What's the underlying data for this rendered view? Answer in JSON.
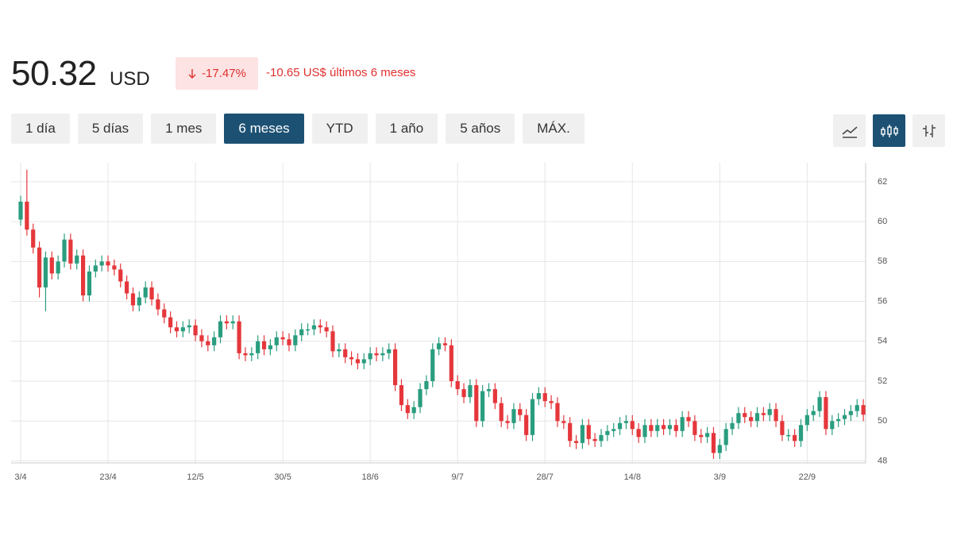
{
  "header": {
    "price": "50.32",
    "currency": "USD",
    "change_pct": "-17.47%",
    "change_abs": "-10.65 US$ últimos 6 meses"
  },
  "tabs": {
    "items": [
      "1 día",
      "5 días",
      "1 mes",
      "6 meses",
      "YTD",
      "1 año",
      "5 años",
      "MÁX."
    ],
    "active": 3
  },
  "chart_data": {
    "type": "candlestick",
    "up_color": "#2a9d7f",
    "down_color": "#e5373b",
    "grid": true,
    "ylim": [
      47.9,
      62.95
    ],
    "yticks": [
      48,
      50,
      52,
      54,
      56,
      58,
      60,
      62
    ],
    "categories": [
      "3/4",
      null,
      null,
      null,
      null,
      null,
      null,
      null,
      null,
      null,
      null,
      null,
      null,
      null,
      "23/4",
      null,
      null,
      null,
      null,
      null,
      null,
      null,
      null,
      null,
      null,
      null,
      null,
      null,
      "12/5",
      null,
      null,
      null,
      null,
      null,
      null,
      null,
      null,
      null,
      null,
      null,
      null,
      null,
      "30/5",
      null,
      null,
      null,
      null,
      null,
      null,
      null,
      null,
      null,
      null,
      null,
      null,
      null,
      "18/6",
      null,
      null,
      null,
      null,
      null,
      null,
      null,
      null,
      null,
      null,
      null,
      null,
      null,
      "9/7",
      null,
      null,
      null,
      null,
      null,
      null,
      null,
      null,
      null,
      null,
      null,
      null,
      null,
      "28/7",
      null,
      null,
      null,
      null,
      null,
      null,
      null,
      null,
      null,
      null,
      null,
      null,
      null,
      "14/8",
      null,
      null,
      null,
      null,
      null,
      null,
      null,
      null,
      null,
      null,
      null,
      null,
      null,
      "3/9",
      null,
      null,
      null,
      null,
      null,
      null,
      null,
      null,
      null,
      null,
      null,
      null,
      null,
      "22/9",
      null,
      null,
      null,
      null,
      null,
      null,
      null,
      null,
      null
    ],
    "open": [
      60.1,
      61,
      59.6,
      58.7,
      56.7,
      58.2,
      57.4,
      58.0,
      59.1,
      57.9,
      58.3,
      56.3,
      57.5,
      57.8,
      58.0,
      57.8,
      57.6,
      57.0,
      56.4,
      55.8,
      56.2,
      56.7,
      56.1,
      55.6,
      55.2,
      54.7,
      54.5,
      54.7,
      54.8,
      54.3,
      54.0,
      53.8,
      54.2,
      55.0,
      54.9,
      55.0,
      53.4,
      53.3,
      53.4,
      54.0,
      53.6,
      53.8,
      54.2,
      54.1,
      53.8,
      54.3,
      54.6,
      54.6,
      54.8,
      54.7,
      54.5,
      53.5,
      53.6,
      53.2,
      53.1,
      52.9,
      53.1,
      53.4,
      53.3,
      53.4,
      53.6,
      51.8,
      50.8,
      50.4,
      50.7,
      51.6,
      52.0,
      53.6,
      53.9,
      53.8,
      52.0,
      51.6,
      51.2,
      51.8,
      50.0,
      51.5,
      51.6,
      50.9,
      50.0,
      49.9,
      50.6,
      50.3,
      49.3,
      51.1,
      51.4,
      51.0,
      50.9,
      50.0,
      49.9,
      49.0,
      48.9,
      49.8,
      49.1,
      49.0,
      49.3,
      49.5,
      49.6,
      49.9,
      50.0,
      49.6,
      49.2,
      49.8,
      49.5,
      49.8,
      49.6,
      49.8,
      49.5,
      50.2,
      50.0,
      49.3,
      49.2,
      49.4,
      48.4,
      48.8,
      49.6,
      49.9,
      50.4,
      50.2,
      50.0,
      50.4,
      50.3,
      50.6,
      50.0,
      49.3,
      49.3,
      49.0,
      49.8,
      50.3,
      50.5,
      51.2,
      49.6,
      50.0,
      50.1,
      50.3,
      50.5,
      50.8
    ],
    "high": [
      61.3,
      62.6,
      59.9,
      59.0,
      58.5,
      58.5,
      58.3,
      59.4,
      59.4,
      58.6,
      58.6,
      57.8,
      58.1,
      58.3,
      58.3,
      58.1,
      57.9,
      57.3,
      56.7,
      56.5,
      57.0,
      57.0,
      56.4,
      55.9,
      55.5,
      55.0,
      55.0,
      55.1,
      55.1,
      54.6,
      54.3,
      54.5,
      55.3,
      55.3,
      55.3,
      55.3,
      53.7,
      53.7,
      54.3,
      54.3,
      54.1,
      54.5,
      54.5,
      54.4,
      54.6,
      54.9,
      54.9,
      55.1,
      55.1,
      55.0,
      54.8,
      53.9,
      53.9,
      53.5,
      53.4,
      53.4,
      53.7,
      53.7,
      53.7,
      53.9,
      53.9,
      52.1,
      51.1,
      51.0,
      51.9,
      52.3,
      53.9,
      54.2,
      54.2,
      54.1,
      52.3,
      51.9,
      52.1,
      52.1,
      51.8,
      51.9,
      51.9,
      51.2,
      50.3,
      50.9,
      50.9,
      50.6,
      51.4,
      51.7,
      51.7,
      51.3,
      51.2,
      50.3,
      50.2,
      49.3,
      50.1,
      50.1,
      49.4,
      49.6,
      49.8,
      49.9,
      50.2,
      50.3,
      50.3,
      49.9,
      50.1,
      50.1,
      50.1,
      50.1,
      50.1,
      50.1,
      50.5,
      50.5,
      50.3,
      49.6,
      49.7,
      49.7,
      49.1,
      49.9,
      50.2,
      50.7,
      50.7,
      50.5,
      50.7,
      50.7,
      50.9,
      50.9,
      50.3,
      49.6,
      49.6,
      50.1,
      50.6,
      50.8,
      51.5,
      51.5,
      50.3,
      50.4,
      50.6,
      50.8,
      51.1,
      51.1
    ],
    "low": [
      59.8,
      59.3,
      58.4,
      56.2,
      55.5,
      57.1,
      57.1,
      57.7,
      57.6,
      57.6,
      56.0,
      56.0,
      57.2,
      57.5,
      57.5,
      57.3,
      56.7,
      56.1,
      55.5,
      55.5,
      55.9,
      55.8,
      55.3,
      54.9,
      54.4,
      54.2,
      54.2,
      54.4,
      54.0,
      53.7,
      53.5,
      53.5,
      53.9,
      54.6,
      54.6,
      53.1,
      53.0,
      53.0,
      53.1,
      53.3,
      53.3,
      53.5,
      53.8,
      53.5,
      53.5,
      54.0,
      54.3,
      54.3,
      54.4,
      54.2,
      53.2,
      53.2,
      52.9,
      52.8,
      52.6,
      52.6,
      52.8,
      53.0,
      53.0,
      53.1,
      51.5,
      50.5,
      50.1,
      50.1,
      50.4,
      51.3,
      51.7,
      53.3,
      53.5,
      51.7,
      51.3,
      50.9,
      50.9,
      49.7,
      49.7,
      51.2,
      50.6,
      49.7,
      49.6,
      49.6,
      50.0,
      49.0,
      49.0,
      50.8,
      50.7,
      50.6,
      49.7,
      49.6,
      48.7,
      48.6,
      48.6,
      48.8,
      48.7,
      48.7,
      49.0,
      49.2,
      49.3,
      49.6,
      49.3,
      48.9,
      48.9,
      49.2,
      49.2,
      49.3,
      49.3,
      49.2,
      49.2,
      49.7,
      49.0,
      48.9,
      48.9,
      48.1,
      48.1,
      48.5,
      49.3,
      49.6,
      49.9,
      49.7,
      49.7,
      50.0,
      50.0,
      49.7,
      49.0,
      49.0,
      48.7,
      48.7,
      49.5,
      50.0,
      50.2,
      49.3,
      49.3,
      49.7,
      49.8,
      50.0,
      50.2,
      50.0
    ],
    "close": [
      61,
      59.6,
      58.7,
      56.7,
      58.2,
      57.4,
      58.0,
      59.1,
      57.9,
      58.3,
      56.3,
      57.5,
      57.8,
      58.0,
      57.8,
      57.6,
      57.0,
      56.4,
      55.8,
      56.2,
      56.7,
      56.1,
      55.6,
      55.2,
      54.7,
      54.5,
      54.7,
      54.8,
      54.3,
      54.0,
      53.8,
      54.2,
      55.0,
      54.9,
      55.0,
      53.4,
      53.3,
      53.4,
      54.0,
      53.6,
      53.8,
      54.2,
      54.1,
      53.8,
      54.3,
      54.6,
      54.6,
      54.8,
      54.7,
      54.5,
      53.5,
      53.6,
      53.2,
      53.1,
      52.9,
      53.1,
      53.4,
      53.3,
      53.4,
      53.6,
      51.8,
      50.8,
      50.4,
      50.7,
      51.6,
      52.0,
      53.6,
      53.9,
      53.8,
      52.0,
      51.6,
      51.2,
      51.8,
      50.0,
      51.5,
      51.6,
      50.9,
      50.0,
      49.9,
      50.6,
      50.3,
      49.3,
      51.1,
      51.4,
      51.0,
      50.9,
      50.0,
      49.9,
      49.0,
      48.9,
      49.8,
      49.1,
      49.0,
      49.3,
      49.5,
      49.6,
      49.9,
      50.0,
      49.6,
      49.2,
      49.8,
      49.5,
      49.8,
      49.6,
      49.8,
      49.5,
      50.2,
      50.0,
      49.3,
      49.2,
      49.4,
      48.4,
      48.8,
      49.6,
      49.9,
      50.4,
      50.2,
      50.0,
      50.4,
      50.3,
      50.6,
      50.0,
      49.3,
      49.3,
      49.0,
      49.8,
      50.3,
      50.5,
      51.2,
      49.6,
      50.0,
      50.1,
      50.3,
      50.5,
      50.8,
      50.32
    ]
  }
}
